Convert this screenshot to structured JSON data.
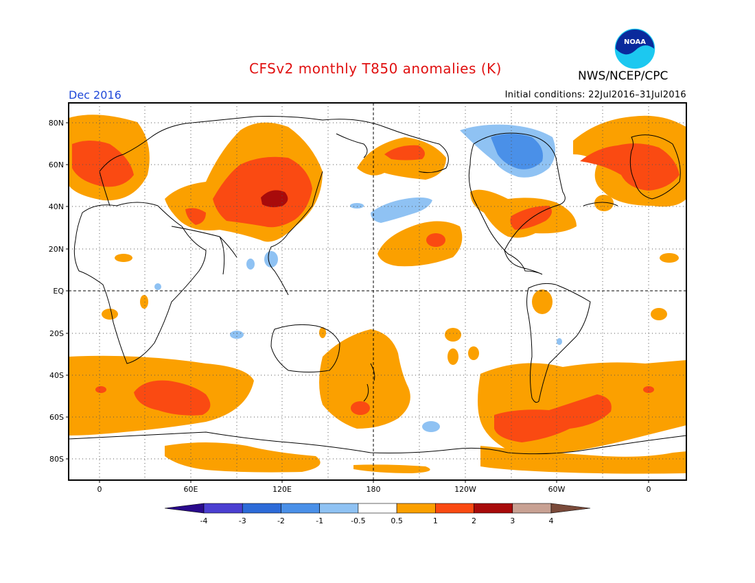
{
  "title": "CFSv2 monthly T850 anomalies (K)",
  "agency": "NWS/NCEP/CPC",
  "logo_text": "NOAA",
  "period": "Dec 2016",
  "initial_conditions": "Initial conditions: 22Jul2016–31Jul2016",
  "map": {
    "lat_ticks": [
      "80N",
      "60N",
      "40N",
      "20N",
      "EQ",
      "20S",
      "40S",
      "60S",
      "80S"
    ],
    "lon_ticks": [
      "0",
      "60E",
      "120E",
      "180",
      "120W",
      "60W",
      "0"
    ]
  },
  "colorbar": {
    "labels": [
      "-4",
      "-3",
      "-2",
      "-1",
      "-0.5",
      "0.5",
      "1",
      "2",
      "3",
      "4"
    ],
    "colors": [
      "#2a0a8c",
      "#4b3fd1",
      "#2d6bd8",
      "#4a90e8",
      "#8fc2f3",
      "#ffffff",
      "#fba000",
      "#fa4a12",
      "#a80b0b",
      "#c8a193",
      "#7a4a3a"
    ]
  }
}
